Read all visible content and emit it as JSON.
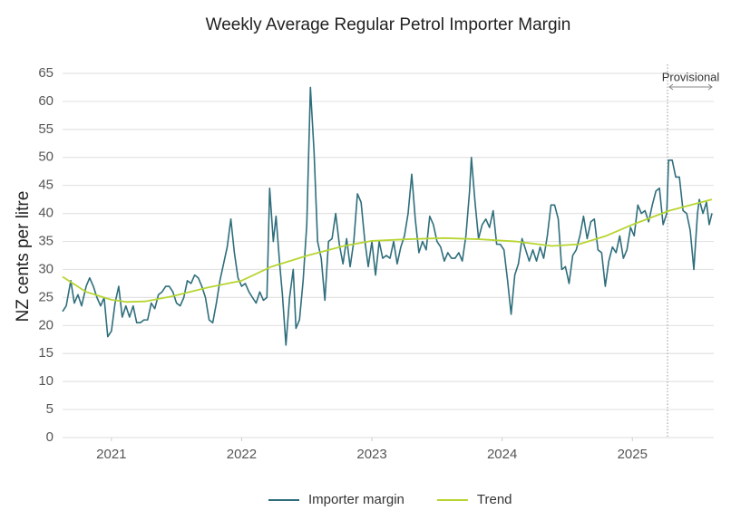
{
  "chart_data": {
    "type": "line",
    "title": "Weekly Average Regular Petrol Importer Margin",
    "ylabel": "NZ cents per litre",
    "xlim": [
      2020.625,
      2025.625
    ],
    "ylim": [
      0,
      65
    ],
    "xticks": [
      2021,
      2022,
      2023,
      2024,
      2025
    ],
    "yticks": [
      0,
      5,
      10,
      15,
      20,
      25,
      30,
      35,
      40,
      45,
      50,
      55,
      60,
      65
    ],
    "grid": true,
    "legend": "bottom",
    "annotations": [
      {
        "text": "Provisional",
        "x": 2025.27
      }
    ],
    "series": [
      {
        "name": "Importer margin",
        "color": "#2f6e7c",
        "x": [
          2020.625,
          2020.653,
          2020.688,
          2020.715,
          2020.743,
          2020.771,
          2020.806,
          2020.833,
          2020.861,
          2020.889,
          2020.917,
          2020.944,
          2020.972,
          2021.0,
          2021.028,
          2021.056,
          2021.083,
          2021.111,
          2021.139,
          2021.167,
          2021.194,
          2021.222,
          2021.25,
          2021.278,
          2021.306,
          2021.333,
          2021.361,
          2021.389,
          2021.417,
          2021.444,
          2021.472,
          2021.5,
          2021.528,
          2021.556,
          2021.583,
          2021.611,
          2021.639,
          2021.667,
          2021.694,
          2021.722,
          2021.75,
          2021.778,
          2021.806,
          2021.833,
          2021.861,
          2021.889,
          2021.917,
          2021.944,
          2021.972,
          2022.0,
          2022.028,
          2022.056,
          2022.083,
          2022.111,
          2022.139,
          2022.167,
          2022.194,
          2022.215,
          2022.243,
          2022.264,
          2022.292,
          2022.313,
          2022.34,
          2022.368,
          2022.396,
          2022.417,
          2022.444,
          2022.472,
          2022.5,
          2022.528,
          2022.556,
          2022.583,
          2022.611,
          2022.639,
          2022.667,
          2022.694,
          2022.722,
          2022.75,
          2022.778,
          2022.806,
          2022.833,
          2022.861,
          2022.889,
          2022.917,
          2022.944,
          2022.972,
          2023.0,
          2023.028,
          2023.056,
          2023.083,
          2023.111,
          2023.139,
          2023.167,
          2023.194,
          2023.222,
          2023.25,
          2023.278,
          2023.306,
          2023.333,
          2023.361,
          2023.389,
          2023.417,
          2023.444,
          2023.472,
          2023.5,
          2023.528,
          2023.556,
          2023.583,
          2023.611,
          2023.639,
          2023.667,
          2023.694,
          2023.722,
          2023.75,
          2023.764,
          2023.792,
          2023.819,
          2023.847,
          2023.875,
          2023.903,
          2023.931,
          2023.958,
          2023.986,
          2024.014,
          2024.042,
          2024.069,
          2024.097,
          2024.125,
          2024.153,
          2024.181,
          2024.208,
          2024.236,
          2024.264,
          2024.292,
          2024.319,
          2024.347,
          2024.375,
          2024.403,
          2024.431,
          2024.458,
          2024.486,
          2024.514,
          2024.542,
          2024.569,
          2024.597,
          2024.625,
          2024.653,
          2024.681,
          2024.708,
          2024.736,
          2024.764,
          2024.792,
          2024.819,
          2024.847,
          2024.875,
          2024.903,
          2024.931,
          2024.958,
          2024.986,
          2025.014,
          2025.042,
          2025.069,
          2025.097,
          2025.125,
          2025.153,
          2025.181,
          2025.208,
          2025.236,
          2025.264,
          2025.278,
          2025.306,
          2025.333,
          2025.361,
          2025.389,
          2025.417,
          2025.444,
          2025.472,
          2025.5,
          2025.514,
          2025.542,
          2025.569,
          2025.59,
          2025.611
        ],
        "values": [
          22.5,
          23.5,
          28,
          24,
          25.5,
          23.5,
          27,
          28.5,
          27,
          25,
          23.5,
          25,
          18,
          19,
          24,
          27,
          21.5,
          23.5,
          21.5,
          23.5,
          20.5,
          20.5,
          21,
          21,
          24,
          23,
          25.5,
          26,
          27,
          27,
          26,
          24,
          23.5,
          25,
          28,
          27.5,
          29,
          28.5,
          27,
          25,
          21,
          20.5,
          24,
          28,
          31,
          34,
          39,
          33,
          28.5,
          27,
          27.5,
          26,
          25,
          24,
          26,
          24.5,
          25,
          44.5,
          35,
          39.5,
          31,
          25.5,
          16.5,
          25,
          30,
          19.5,
          21,
          28,
          38,
          62.5,
          51,
          35,
          32,
          24.5,
          35,
          35.5,
          40,
          34.5,
          31,
          35.5,
          30.5,
          35,
          43.5,
          42,
          35.5,
          30.5,
          35,
          29,
          35,
          32,
          32.5,
          32,
          35,
          31,
          34,
          36,
          40,
          47,
          39,
          33,
          35,
          33.5,
          39.5,
          38,
          35,
          34,
          31.5,
          33,
          32,
          32,
          33,
          31.5,
          36,
          44,
          50,
          42,
          35.5,
          38,
          39,
          37.5,
          40.5,
          34.5,
          34.5,
          33.5,
          28,
          22,
          29,
          31,
          35.5,
          33.5,
          31.5,
          33.5,
          31.5,
          34,
          32,
          36,
          41.5,
          41.5,
          39,
          30,
          30.5,
          27.5,
          32.5,
          33.5,
          36,
          39.5,
          35.5,
          38.5,
          39,
          33.5,
          33,
          27,
          31.5,
          34,
          33,
          36,
          32,
          33.5,
          37.5,
          36,
          41.5,
          40,
          40.5,
          38.5,
          41.5,
          44,
          44.5,
          38,
          40,
          49.5,
          49.5,
          46.5,
          46.5,
          40.5,
          40,
          37,
          30,
          40,
          42.5,
          40,
          42,
          38,
          40
        ]
      },
      {
        "name": "Trend",
        "color": "#b7d531",
        "x": [
          2020.625,
          2020.806,
          2021.0,
          2021.118,
          2021.257,
          2021.465,
          2021.743,
          2022.0,
          2022.229,
          2022.507,
          2022.785,
          2023.0,
          2023.271,
          2023.549,
          2023.826,
          2024.104,
          2024.382,
          2024.59,
          2024.799,
          2025.0,
          2025.285,
          2025.611
        ],
        "values": [
          28.7,
          26,
          24.6,
          24.2,
          24.3,
          25.2,
          26.8,
          28,
          30.5,
          32.5,
          34.2,
          35.1,
          35.4,
          35.6,
          35.4,
          35,
          34.2,
          34.5,
          36,
          38,
          40.5,
          42.5
        ]
      }
    ]
  }
}
